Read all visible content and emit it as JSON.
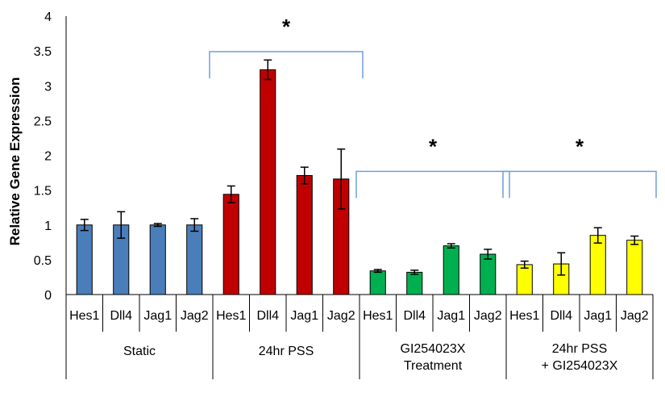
{
  "chart_data": {
    "type": "bar",
    "ylabel": "Relative Gene Expression",
    "ylim": [
      0,
      4
    ],
    "yticks": [
      "0",
      "0.5",
      "1",
      "1.5",
      "2",
      "2.5",
      "3",
      "3.5",
      "4"
    ],
    "grid": false,
    "groups": [
      {
        "label_lines": [
          "Static"
        ],
        "color": "#4a7ebb",
        "categories": [
          "Hes1",
          "Dll4",
          "Jag1",
          "Jag2"
        ],
        "values": [
          1.0,
          1.0,
          1.0,
          1.0
        ],
        "errors": [
          0.08,
          0.19,
          0.02,
          0.09
        ]
      },
      {
        "label_lines": [
          "24hr PSS"
        ],
        "color": "#c00000",
        "categories": [
          "Hes1",
          "Dll4",
          "Jag1",
          "Jag2"
        ],
        "values": [
          1.44,
          3.23,
          1.71,
          1.66
        ],
        "errors": [
          0.12,
          0.14,
          0.12,
          0.43
        ]
      },
      {
        "label_lines": [
          "GI254023X",
          "Treatment"
        ],
        "color": "#00b050",
        "categories": [
          "Hes1",
          "Dll4",
          "Jag1",
          "Jag2"
        ],
        "values": [
          0.34,
          0.32,
          0.7,
          0.58
        ],
        "errors": [
          0.02,
          0.03,
          0.03,
          0.07
        ]
      },
      {
        "label_lines": [
          "24hr PSS",
          "+ GI254023X"
        ],
        "color": "#ffff00",
        "categories": [
          "Hes1",
          "Dll4",
          "Jag1",
          "Jag2"
        ],
        "values": [
          0.43,
          0.44,
          0.85,
          0.78
        ],
        "errors": [
          0.05,
          0.16,
          0.11,
          0.06
        ]
      }
    ],
    "significance": [
      {
        "label": "*",
        "from_group": 1,
        "to_group": 1,
        "y": 3.49
      },
      {
        "label": "*",
        "from_group": 2,
        "to_group": 2,
        "y": 1.77
      },
      {
        "label": "*",
        "from_group": 3,
        "to_group": 3,
        "y": 1.77
      }
    ],
    "colors": {
      "bracket": "#6f9fd8",
      "axis": "#000000",
      "bar_outline": "#000000"
    }
  }
}
